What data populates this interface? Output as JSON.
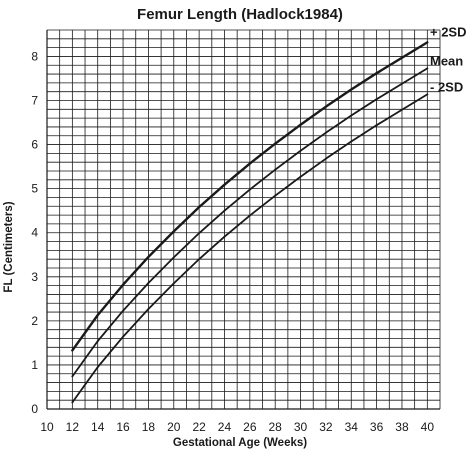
{
  "chart_data": {
    "type": "line",
    "title": "Femur Length (Hadlock1984)",
    "xlabel": "Gestational Age (Weeks)",
    "ylabel": "FL (Centimeters)",
    "xlim": [
      10,
      41
    ],
    "ylim": [
      0,
      8.6
    ],
    "x_ticks": [
      "10",
      "12",
      "14",
      "16",
      "18",
      "20",
      "22",
      "24",
      "26",
      "28",
      "30",
      "32",
      "34",
      "36",
      "38",
      "40"
    ],
    "y_ticks": [
      "0",
      "1",
      "2",
      "3",
      "4",
      "5",
      "6",
      "7",
      "8"
    ],
    "grid": true,
    "x": [
      12,
      14,
      16,
      18,
      20,
      22,
      24,
      26,
      28,
      30,
      32,
      34,
      36,
      38,
      40
    ],
    "series": [
      {
        "name": "+ 2SD",
        "values": [
          1.33,
          2.13,
          2.82,
          3.45,
          4.03,
          4.58,
          5.09,
          5.57,
          6.02,
          6.45,
          6.86,
          7.25,
          7.62,
          7.97,
          8.32
        ]
      },
      {
        "name": "Mean",
        "values": [
          0.74,
          1.54,
          2.23,
          2.86,
          3.44,
          3.99,
          4.5,
          4.98,
          5.43,
          5.86,
          6.27,
          6.66,
          7.03,
          7.38,
          7.73
        ]
      },
      {
        "name": "- 2SD",
        "values": [
          0.15,
          0.95,
          1.64,
          2.27,
          2.85,
          3.4,
          3.91,
          4.39,
          4.84,
          5.27,
          5.68,
          6.07,
          6.44,
          6.79,
          7.14
        ]
      }
    ],
    "line_color": "#1a1a1a",
    "grid_color": "#1a1a1a"
  }
}
